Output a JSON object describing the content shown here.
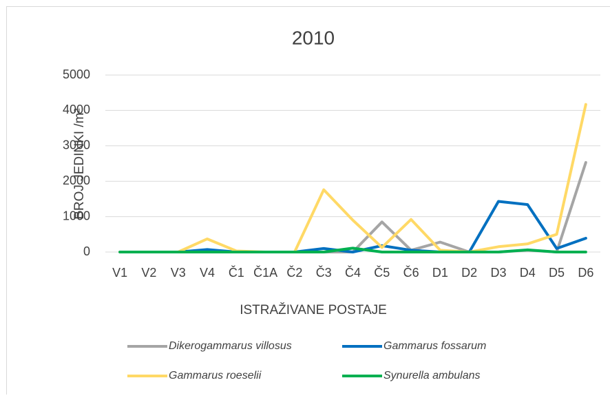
{
  "chart_data": {
    "type": "line",
    "title": "2010",
    "x_label": "ISTRAŽIVANE POSTAJE",
    "y_label": "BROJ JEDINKI /m²",
    "categories": [
      "V1",
      "V2",
      "V3",
      "V4",
      "Č1",
      "Č1A",
      "Č2",
      "Č3",
      "Č4",
      "Č5",
      "Č6",
      "D1",
      "D2",
      "D3",
      "D4",
      "D5",
      "D6"
    ],
    "series": [
      {
        "name": "Dikerogammarus villosus",
        "color": "#a5a5a5",
        "values": [
          0,
          0,
          0,
          0,
          0,
          0,
          0,
          0,
          0,
          850,
          50,
          280,
          0,
          0,
          50,
          0,
          2530
        ]
      },
      {
        "name": "Gammarus fossarum",
        "color": "#0070c0",
        "values": [
          0,
          0,
          0,
          70,
          0,
          0,
          0,
          100,
          0,
          180,
          50,
          0,
          0,
          1430,
          1340,
          100,
          390
        ]
      },
      {
        "name": "Gammarus roeselii",
        "color": "#ffd966",
        "values": [
          0,
          0,
          0,
          370,
          30,
          0,
          0,
          1760,
          900,
          130,
          920,
          50,
          0,
          150,
          230,
          500,
          4170
        ]
      },
      {
        "name": "Synurella ambulans",
        "color": "#00b050",
        "values": [
          0,
          0,
          0,
          0,
          0,
          0,
          0,
          0,
          110,
          0,
          0,
          0,
          0,
          0,
          60,
          0,
          0
        ]
      }
    ],
    "ylim": [
      0,
      5000
    ],
    "yticks": [
      0,
      1000,
      2000,
      3000,
      4000,
      5000
    ],
    "grid": true
  }
}
